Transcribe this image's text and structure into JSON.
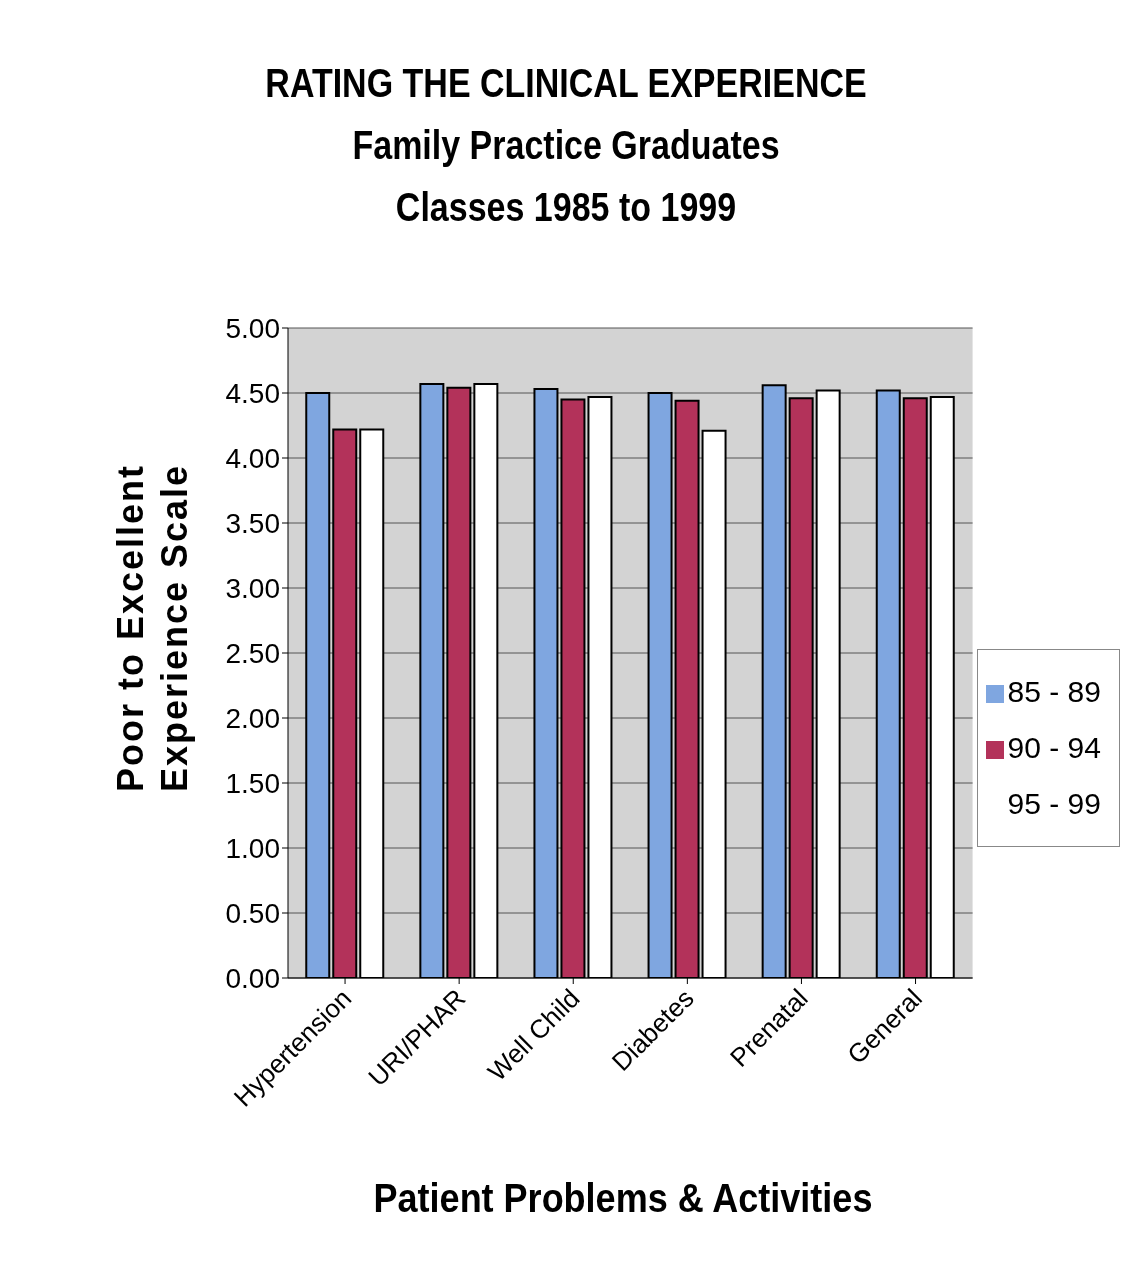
{
  "chart_data": {
    "type": "bar",
    "title": "RATING THE CLINICAL EXPERIENCE",
    "subtitle": "Family Practice Graduates\nClasses 1985 to 1999",
    "xlabel": "Patient Problems & Activities",
    "ylabel": "Poor to Excellent Experience Scale",
    "categories": [
      "Hypertension",
      "URI/PHAR",
      "Well Child",
      "Diabetes",
      "Prenatal",
      "General"
    ],
    "series": [
      {
        "name": "85 - 89",
        "color": "#7fa6e0",
        "values": [
          4.5,
          4.57,
          4.53,
          4.5,
          4.56,
          4.52
        ]
      },
      {
        "name": "90 - 94",
        "color": "#b3325a",
        "values": [
          4.22,
          4.54,
          4.45,
          4.44,
          4.46,
          4.46
        ]
      },
      {
        "name": "95 - 99",
        "color": "#ffffff",
        "values": [
          4.22,
          4.57,
          4.47,
          4.21,
          4.52,
          4.47
        ]
      }
    ],
    "ylim": [
      0,
      5
    ],
    "yticks": [
      {
        "value": 0,
        "label": "0.00"
      },
      {
        "value": 0.5,
        "label": "0.50"
      },
      {
        "value": 1,
        "label": "1.00"
      },
      {
        "value": 1.5,
        "label": "1.50"
      },
      {
        "value": 2,
        "label": "2.00"
      },
      {
        "value": 2.5,
        "label": "2.50"
      },
      {
        "value": 3,
        "label": "3.00"
      },
      {
        "value": 3.5,
        "label": "3.50"
      },
      {
        "value": 4,
        "label": "4.00"
      },
      {
        "value": 4.5,
        "label": "4.50"
      },
      {
        "value": 5,
        "label": "5.00"
      }
    ],
    "grid": "y",
    "legend": "right"
  }
}
